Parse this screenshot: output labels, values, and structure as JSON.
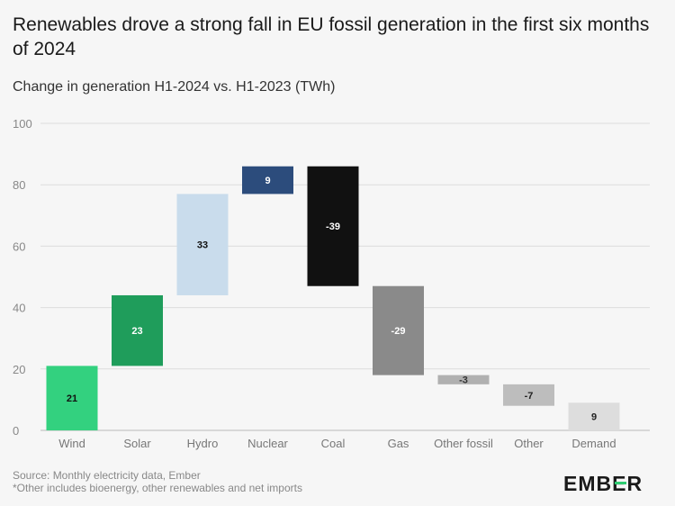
{
  "chart_data": {
    "type": "waterfall",
    "title": "Renewables drove a strong fall in EU fossil generation in the first six months of 2024",
    "subtitle": "Change in generation H1-2024 vs. H1-2023 (TWh)",
    "categories": [
      "Wind",
      "Solar",
      "Hydro",
      "Nuclear",
      "Coal",
      "Gas",
      "Other fossil",
      "Other",
      "Demand"
    ],
    "values": [
      21,
      23,
      33,
      9,
      -39,
      -29,
      -3,
      -7,
      9
    ],
    "total_categories": [
      "Demand"
    ],
    "colors": [
      "#33d17f",
      "#1f9d5b",
      "#c9dcec",
      "#2c4c7c",
      "#111111",
      "#8a8a8a",
      "#b0b0b0",
      "#bdbdbd",
      "#dddddd"
    ],
    "label_colors": [
      "#111111",
      "#ffffff",
      "#111111",
      "#ffffff",
      "#ffffff",
      "#ffffff",
      "#333333",
      "#222222",
      "#222222"
    ],
    "ylim": [
      0,
      100
    ],
    "yticks": [
      0,
      20,
      40,
      60,
      80,
      100
    ],
    "grid": true
  },
  "footer": {
    "source": "Source: Monthly electricity data, Ember",
    "note": "*Other includes bioenergy, other renewables and net imports"
  },
  "logo": "EMBER"
}
